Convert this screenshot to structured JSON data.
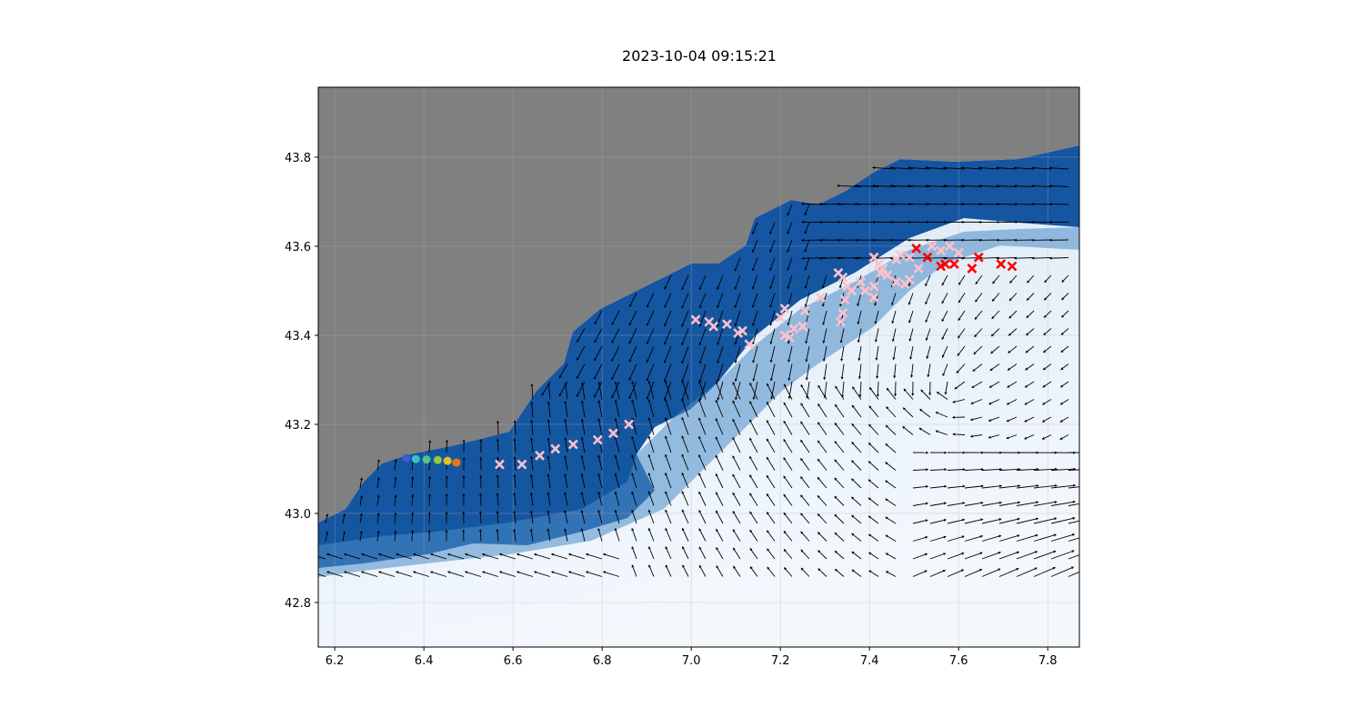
{
  "title": "2023-10-04 09:15:21",
  "colors": {
    "land": "#808080",
    "deep_water": "#08479a",
    "shallow_water": "#eef4fb",
    "pink_marker": "#ffc0cb",
    "red_marker": "#ff0000",
    "arrow": "#000000"
  },
  "chart_data": {
    "type": "scatter",
    "xlim": [
      6.163,
      7.871
    ],
    "ylim": [
      42.7,
      43.957
    ],
    "grid": true,
    "x_ticks": [
      "6.2",
      "6.4",
      "6.6",
      "6.8",
      "7.0",
      "7.2",
      "7.4",
      "7.6",
      "7.8"
    ],
    "y_ticks": [
      "42.8",
      "43.0",
      "43.2",
      "43.4",
      "43.6",
      "43.8"
    ],
    "overlays": [
      "bathymetry shading (Blues)",
      "land mask (gray)",
      "current vectors (quiver)"
    ],
    "track_points": {
      "marker": "circle",
      "colormap": "viridis-like",
      "points": [
        [
          6.361,
          43.124
        ],
        [
          6.382,
          43.122
        ],
        [
          6.406,
          43.121
        ],
        [
          6.431,
          43.12
        ],
        [
          6.453,
          43.118
        ],
        [
          6.473,
          43.114
        ]
      ],
      "colors": [
        "#3a5ad0",
        "#35c2c6",
        "#55c28c",
        "#95c645",
        "#e3c11f",
        "#f07512"
      ]
    },
    "pink_crosses": [
      [
        6.57,
        43.11
      ],
      [
        6.62,
        43.11
      ],
      [
        6.66,
        43.13
      ],
      [
        6.695,
        43.145
      ],
      [
        6.735,
        43.155
      ],
      [
        6.79,
        43.165
      ],
      [
        6.825,
        43.18
      ],
      [
        6.86,
        43.2
      ],
      [
        7.01,
        43.435
      ],
      [
        7.04,
        43.43
      ],
      [
        7.05,
        43.42
      ],
      [
        7.08,
        43.425
      ],
      [
        7.105,
        43.405
      ],
      [
        7.115,
        43.41
      ],
      [
        7.13,
        43.38
      ],
      [
        7.2,
        43.44
      ],
      [
        7.21,
        43.46
      ],
      [
        7.21,
        43.4
      ],
      [
        7.22,
        43.395
      ],
      [
        7.23,
        43.415
      ],
      [
        7.25,
        43.42
      ],
      [
        7.255,
        43.455
      ],
      [
        7.29,
        43.485
      ],
      [
        7.33,
        43.54
      ],
      [
        7.34,
        43.53
      ],
      [
        7.35,
        43.51
      ],
      [
        7.345,
        43.48
      ],
      [
        7.34,
        43.45
      ],
      [
        7.335,
        43.43
      ],
      [
        7.36,
        43.5
      ],
      [
        7.38,
        43.52
      ],
      [
        7.39,
        43.5
      ],
      [
        7.41,
        43.575
      ],
      [
        7.42,
        43.56
      ],
      [
        7.425,
        43.54
      ],
      [
        7.43,
        43.55
      ],
      [
        7.44,
        43.535
      ],
      [
        7.41,
        43.485
      ],
      [
        7.41,
        43.51
      ],
      [
        7.46,
        43.57
      ],
      [
        7.47,
        43.58
      ],
      [
        7.49,
        43.575
      ],
      [
        7.46,
        43.52
      ],
      [
        7.48,
        43.515
      ],
      [
        7.49,
        43.525
      ],
      [
        7.51,
        43.55
      ],
      [
        7.54,
        43.6
      ],
      [
        7.56,
        43.59
      ],
      [
        7.58,
        43.6
      ],
      [
        7.6,
        43.585
      ]
    ],
    "red_crosses": [
      [
        7.505,
        43.595
      ],
      [
        7.53,
        43.575
      ],
      [
        7.56,
        43.555
      ],
      [
        7.57,
        43.56
      ],
      [
        7.59,
        43.56
      ],
      [
        7.63,
        43.55
      ],
      [
        7.645,
        43.575
      ],
      [
        7.695,
        43.56
      ],
      [
        7.72,
        43.555
      ]
    ]
  }
}
